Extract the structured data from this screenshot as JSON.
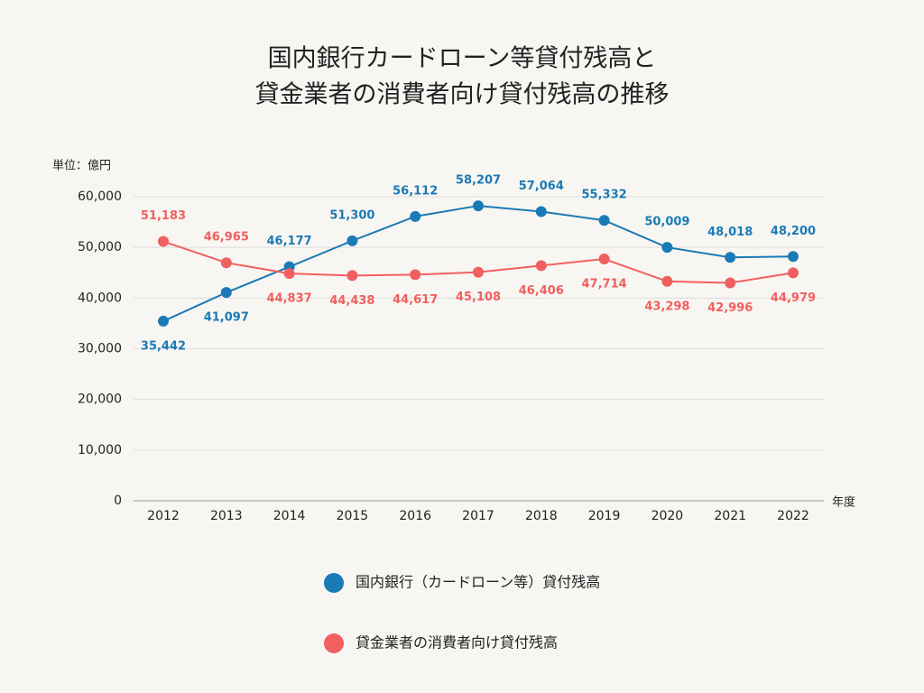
{
  "chart_data": {
    "type": "line",
    "title": [
      "国内銀行カードローン等貸付残高と",
      "貸金業者の消費者向け貸付残高の推移"
    ],
    "y_unit_label": "単位：億円",
    "x_label": "年度",
    "categories": [
      "2012",
      "2013",
      "2014",
      "2015",
      "2016",
      "2017",
      "2018",
      "2019",
      "2020",
      "2021",
      "2022"
    ],
    "series": [
      {
        "name": "国内銀行（カードローン等）貸付残高",
        "color": "#1a7ab5",
        "values": [
          35442,
          41097,
          46177,
          51300,
          56112,
          58207,
          57064,
          55332,
          50009,
          48018,
          48200
        ],
        "value_labels": [
          "35,442",
          "41,097",
          "46,177",
          "51,300",
          "56,112",
          "58,207",
          "57,064",
          "55,332",
          "50,009",
          "48,018",
          "48,200"
        ]
      },
      {
        "name": "貸金業者の消費者向け貸付残高",
        "color": "#f06060",
        "values": [
          51183,
          46965,
          44837,
          44438,
          44617,
          45108,
          46406,
          47714,
          43298,
          42996,
          44979
        ],
        "value_labels": [
          "51,183",
          "46,965",
          "44,837",
          "44,438",
          "44,617",
          "45,108",
          "46,406",
          "47,714",
          "43,298",
          "42,996",
          "44,979"
        ]
      }
    ],
    "ylim": [
      0,
      60000
    ],
    "yticks": [
      0,
      {
        "value": 10000,
        "label": "10,000"
      },
      {
        "value": 20000,
        "label": "20,000"
      },
      {
        "value": 30000,
        "label": "30,000"
      },
      {
        "value": 40000,
        "label": "40,000"
      },
      {
        "value": 50000,
        "label": "50,000"
      },
      {
        "value": 60000,
        "label": "60,000"
      }
    ],
    "grid": true
  }
}
